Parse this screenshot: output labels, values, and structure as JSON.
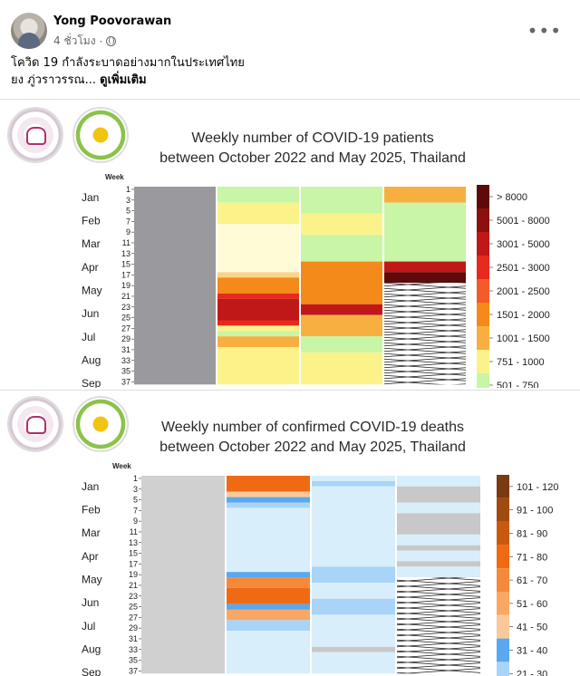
{
  "post": {
    "author": "Yong Poovorawan",
    "time": "4 ชั่วโมง",
    "text_line1": "โควิด 19  กำลังระบาดอย่างมากในประเทศไทย",
    "text_line2": "ยง ภู่วราวรรณ",
    "see_more": "ดูเพิ่มเติม",
    "ellipsis": "..."
  },
  "chart1": {
    "title_line1": "Weekly number of COVID-19 patients",
    "title_line2": "between October 2022 and May 2025, Thailand"
  },
  "chart2": {
    "title_line1": "Weekly number of confirmed COVID-19 deaths",
    "title_line2": "between October 2022 and May 2025, Thailand"
  },
  "chart_data": [
    {
      "type": "heatmap",
      "title": "Weekly number of COVID-19 patients between October 2022 and May 2025, Thailand",
      "week_label": "Week",
      "months": [
        "Jan",
        "Feb",
        "Mar",
        "Apr",
        "May",
        "Jun",
        "Jul",
        "Aug",
        "Sep"
      ],
      "weeks": [
        "1",
        "3",
        "5",
        "7",
        "9",
        "11",
        "13",
        "15",
        "17",
        "19",
        "21",
        "23",
        "25",
        "27",
        "29",
        "31",
        "33",
        "35",
        "37"
      ],
      "legend": [
        {
          "label": "> 8000",
          "color": "#5e0a0a"
        },
        {
          "label": "5001 - 8000",
          "color": "#8c1010"
        },
        {
          "label": "3001 - 5000",
          "color": "#c01818"
        },
        {
          "label": "2501 - 3000",
          "color": "#e62a1e"
        },
        {
          "label": "2001 - 2500",
          "color": "#f55a2a"
        },
        {
          "label": "1501 - 2000",
          "color": "#f48a1a"
        },
        {
          "label": "1001 - 1500",
          "color": "#f7b040"
        },
        {
          "label": "751 - 1000",
          "color": "#fbf38a"
        },
        {
          "label": "501 - 750",
          "color": "#c9f5a6"
        }
      ],
      "columns": [
        {
          "bands": [
            {
              "color": "#9a9a9e",
              "span": 37
            }
          ]
        },
        {
          "bands": [
            {
              "color": "#c9f5a6",
              "span": 3
            },
            {
              "color": "#fbf38a",
              "span": 4
            },
            {
              "color": "#fffbd6",
              "span": 9
            },
            {
              "color": "#fbd38a",
              "span": 1
            },
            {
              "color": "#f48a1a",
              "span": 3
            },
            {
              "color": "#e62a1e",
              "span": 1
            },
            {
              "color": "#c01818",
              "span": 4
            },
            {
              "color": "#e62a1e",
              "span": 1
            },
            {
              "color": "#fbf38a",
              "span": 1
            },
            {
              "color": "#c9f5a6",
              "span": 1
            },
            {
              "color": "#f7b040",
              "span": 2
            },
            {
              "color": "#fbf38a",
              "span": 7
            }
          ]
        },
        {
          "bands": [
            {
              "color": "#c9f5a6",
              "span": 5
            },
            {
              "color": "#fbf38a",
              "span": 4
            },
            {
              "color": "#c9f5a6",
              "span": 5
            },
            {
              "color": "#f48a1a",
              "span": 8
            },
            {
              "color": "#c01818",
              "span": 2
            },
            {
              "color": "#f7b040",
              "span": 4
            },
            {
              "color": "#c9f5a6",
              "span": 3
            },
            {
              "color": "#fbf38a",
              "span": 6
            }
          ]
        },
        {
          "bands": [
            {
              "color": "#f7b040",
              "span": 3
            },
            {
              "color": "#c9f5a6",
              "span": 11
            },
            {
              "color": "#c01818",
              "span": 2
            },
            {
              "color": "#5e0a0a",
              "span": 2
            },
            {
              "color": "#striped",
              "span": 19
            }
          ]
        }
      ]
    },
    {
      "type": "heatmap",
      "title": "Weekly number of confirmed COVID-19 deaths between October 2022 and May 2025, Thailand",
      "week_label": "Week",
      "months": [
        "Jan",
        "Feb",
        "Mar",
        "Apr",
        "May",
        "Jun",
        "Jul",
        "Aug",
        "Sep"
      ],
      "weeks": [
        "1",
        "3",
        "5",
        "7",
        "9",
        "11",
        "13",
        "15",
        "17",
        "19",
        "21",
        "23",
        "25",
        "27",
        "29",
        "31",
        "33",
        "35",
        "37"
      ],
      "legend": [
        {
          "label": "101 - 120",
          "color": "#7a3a12"
        },
        {
          "label": "91 - 100",
          "color": "#a04a10"
        },
        {
          "label": "81 - 90",
          "color": "#c85a10"
        },
        {
          "label": "71 - 80",
          "color": "#f06a14"
        },
        {
          "label": "61 - 70",
          "color": "#f5893a"
        },
        {
          "label": "51 - 60",
          "color": "#f8a862"
        },
        {
          "label": "41 - 50",
          "color": "#fbc89a"
        },
        {
          "label": "31 - 40",
          "color": "#5aa8ef"
        },
        {
          "label": "21 - 30",
          "color": "#a9d4f8"
        }
      ],
      "columns": [
        {
          "bands": [
            {
              "color": "#d0d0d0",
              "span": 37
            }
          ]
        },
        {
          "bands": [
            {
              "color": "#f06a14",
              "span": 3
            },
            {
              "color": "#fbc89a",
              "span": 1
            },
            {
              "color": "#5aa8ef",
              "span": 1
            },
            {
              "color": "#a9d4f8",
              "span": 1
            },
            {
              "color": "#d8eefb",
              "span": 12
            },
            {
              "color": "#5aa8ef",
              "span": 1
            },
            {
              "color": "#f5893a",
              "span": 2
            },
            {
              "color": "#f06a14",
              "span": 3
            },
            {
              "color": "#5aa8ef",
              "span": 1
            },
            {
              "color": "#f8a862",
              "span": 2
            },
            {
              "color": "#a9d4f8",
              "span": 2
            },
            {
              "color": "#d8eefb",
              "span": 8
            }
          ]
        },
        {
          "bands": [
            {
              "color": "#d8eefb",
              "span": 1
            },
            {
              "color": "#a9d4f8",
              "span": 1
            },
            {
              "color": "#d8eefb",
              "span": 15
            },
            {
              "color": "#a9d4f8",
              "span": 3
            },
            {
              "color": "#d8eefb",
              "span": 3
            },
            {
              "color": "#a9d4f8",
              "span": 3
            },
            {
              "color": "#d8eefb",
              "span": 6
            },
            {
              "color": "#c8c8c8",
              "span": 1
            },
            {
              "color": "#d8eefb",
              "span": 4
            }
          ]
        },
        {
          "bands": [
            {
              "color": "#d8eefb",
              "span": 2
            },
            {
              "color": "#c8c8c8",
              "span": 3
            },
            {
              "color": "#d8eefb",
              "span": 2
            },
            {
              "color": "#c8c8c8",
              "span": 4
            },
            {
              "color": "#d8eefb",
              "span": 2
            },
            {
              "color": "#c8c8c8",
              "span": 1
            },
            {
              "color": "#d8eefb",
              "span": 2
            },
            {
              "color": "#c8c8c8",
              "span": 1
            },
            {
              "color": "#d8eefb",
              "span": 2
            },
            {
              "color": "#striped",
              "span": 18
            }
          ]
        }
      ]
    }
  ]
}
